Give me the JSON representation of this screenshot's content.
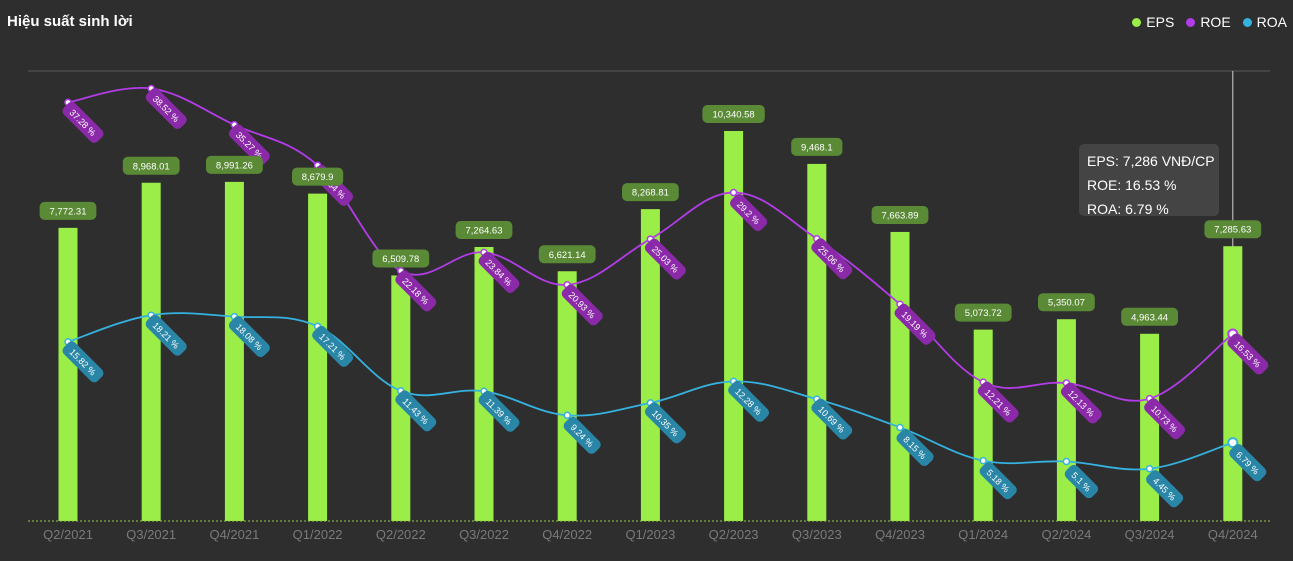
{
  "header": {
    "title": "Hiệu suất sinh lời"
  },
  "colors": {
    "eps": "#9bee48",
    "eps_label_bg": "#5a8a36",
    "roe": "#b23ce8",
    "roe_label_bg": "#8a2aa8",
    "roa": "#35b2e0",
    "roa_label_bg": "#2a86a6",
    "axis": "#9bc848",
    "background": "#2e2e2e"
  },
  "tooltip": {
    "eps": "EPS: 7,286 VNĐ/CP",
    "roe": "ROE: 16.53 %",
    "roa": "ROA: 6.79 %"
  },
  "chart_data": {
    "type": "bar+line",
    "title": "Hiệu suất sinh lời",
    "categories": [
      "Q2/2021",
      "Q3/2021",
      "Q4/2021",
      "Q1/2022",
      "Q2/2022",
      "Q3/2022",
      "Q4/2022",
      "Q1/2023",
      "Q2/2023",
      "Q3/2023",
      "Q4/2023",
      "Q1/2024",
      "Q2/2024",
      "Q3/2024",
      "Q4/2024"
    ],
    "series": [
      {
        "name": "EPS",
        "type": "bar",
        "axis": "left",
        "values": [
          7772.31,
          8968.01,
          8991.26,
          8679.9,
          6509.78,
          7264.63,
          6621.14,
          8268.81,
          10340.58,
          9468.1,
          7663.89,
          5073.72,
          5350.07,
          4963.44,
          7285.63
        ],
        "labels": [
          "7,772.31",
          "8,968.01",
          "8,991.26",
          "8,679.9",
          "6,509.78",
          "7,264.63",
          "6,621.14",
          "8,268.81",
          "10,340.58",
          "9,468.1",
          "7,663.89",
          "5,073.72",
          "5,350.07",
          "4,963.44",
          "7,285.63"
        ]
      },
      {
        "name": "ROE",
        "type": "line",
        "axis": "right",
        "values": [
          37.28,
          38.52,
          35.27,
          31.64,
          22.18,
          23.84,
          20.93,
          25.03,
          29.2,
          25.06,
          19.19,
          12.21,
          12.13,
          10.73,
          16.53
        ],
        "labels": [
          "37.28 %",
          "38.52 %",
          "35.27 %",
          "31.64 %",
          "22.18 %",
          "23.84 %",
          "20.93 %",
          "25.03 %",
          "29.2 %",
          "25.06 %",
          "19.19 %",
          "12.21 %",
          "12.13 %",
          "10.73 %",
          "16.53 %"
        ]
      },
      {
        "name": "ROA",
        "type": "line",
        "axis": "right",
        "values": [
          15.82,
          18.21,
          18.08,
          17.21,
          11.43,
          11.39,
          9.24,
          10.35,
          12.28,
          10.69,
          8.15,
          5.18,
          5.1,
          4.45,
          6.79
        ],
        "labels": [
          "15.82 %",
          "18.21 %",
          "18.08 %",
          "17.21 %",
          "11.43 %",
          "11.39 %",
          "9.24 %",
          "10.35 %",
          "12.28 %",
          "10.69 %",
          "8.15 %",
          "5.18 %",
          "5.1 %",
          "4.45 %",
          "6.79 %"
        ]
      }
    ],
    "legend": {
      "position": "top-right",
      "entries": [
        "EPS",
        "ROE",
        "ROA"
      ]
    },
    "grid": false
  }
}
